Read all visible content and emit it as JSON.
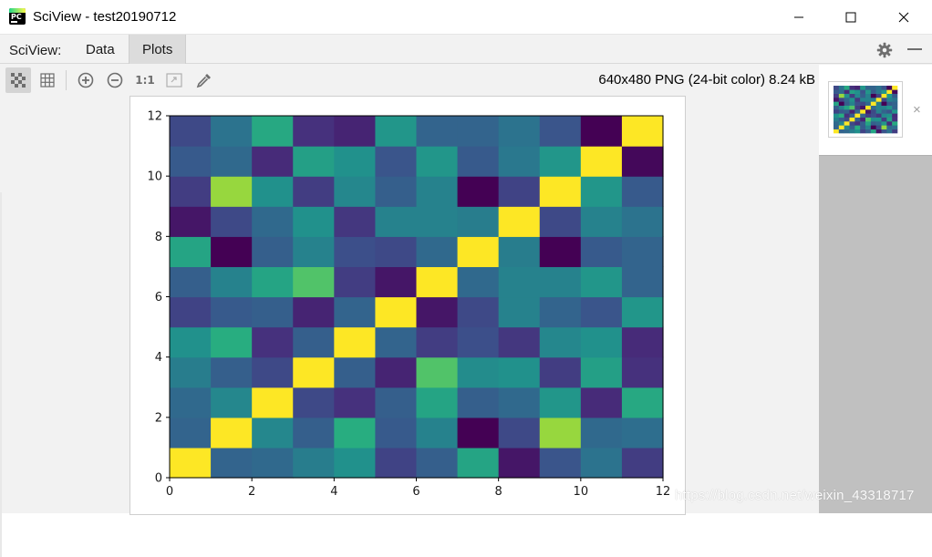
{
  "window": {
    "title": "SciView - test20190712",
    "logo_text": "PC"
  },
  "tabs": {
    "prefix": "SciView:",
    "items": [
      {
        "label": "Data"
      },
      {
        "label": "Plots",
        "active": true
      }
    ]
  },
  "toolbar": {
    "image_info": "640x480 PNG (24-bit color) 8.24 kB",
    "actual_size_label": "1:1",
    "icons": [
      "chessboard-icon",
      "grid-icon",
      "zoom-in-icon",
      "zoom-out-icon",
      "actual-size-icon",
      "fit-zoom-icon",
      "color-picker-icon"
    ]
  },
  "thumbnail": {
    "close_label": "×"
  },
  "watermark": "https://blog.csdn.net/weixin_43318717",
  "colors": {
    "viridis_stops": [
      "#440154",
      "#472d7b",
      "#3b528b",
      "#2c728e",
      "#21918c",
      "#28ae80",
      "#5ec962",
      "#addc30",
      "#fde725"
    ]
  },
  "chart_data": {
    "type": "heatmap",
    "title": "",
    "xlabel": "",
    "ylabel": "",
    "xlim": [
      0,
      12
    ],
    "ylim": [
      0,
      12
    ],
    "x_ticks": [
      "0",
      "2",
      "4",
      "6",
      "8",
      "10",
      "12"
    ],
    "y_ticks": [
      "0",
      "2",
      "4",
      "6",
      "8",
      "10",
      "12"
    ],
    "colormap": "viridis",
    "value_range": [
      0,
      1
    ],
    "rows_bottom_to_top": [
      [
        1.0,
        0.32,
        0.34,
        0.42,
        0.5,
        0.2,
        0.3,
        0.58,
        0.06,
        0.26,
        0.38,
        0.18
      ],
      [
        0.32,
        1.0,
        0.46,
        0.3,
        0.62,
        0.28,
        0.44,
        0.0,
        0.22,
        0.84,
        0.34,
        0.36
      ],
      [
        0.34,
        0.46,
        1.0,
        0.22,
        0.14,
        0.3,
        0.58,
        0.3,
        0.34,
        0.52,
        0.12,
        0.6
      ],
      [
        0.42,
        0.3,
        0.22,
        1.0,
        0.3,
        0.1,
        0.72,
        0.48,
        0.5,
        0.18,
        0.56,
        0.14
      ],
      [
        0.5,
        0.62,
        0.14,
        0.3,
        1.0,
        0.32,
        0.18,
        0.24,
        0.16,
        0.46,
        0.5,
        0.12
      ],
      [
        0.2,
        0.28,
        0.3,
        0.1,
        0.32,
        1.0,
        0.06,
        0.22,
        0.44,
        0.32,
        0.26,
        0.52
      ],
      [
        0.3,
        0.44,
        0.58,
        0.72,
        0.18,
        0.06,
        1.0,
        0.34,
        0.44,
        0.44,
        0.52,
        0.32
      ],
      [
        0.58,
        0.0,
        0.3,
        0.44,
        0.24,
        0.22,
        0.34,
        1.0,
        0.42,
        0.0,
        0.28,
        0.32
      ],
      [
        0.06,
        0.22,
        0.34,
        0.5,
        0.16,
        0.44,
        0.44,
        0.42,
        1.0,
        0.22,
        0.44,
        0.38
      ],
      [
        0.18,
        0.84,
        0.5,
        0.18,
        0.46,
        0.3,
        0.44,
        0.0,
        0.2,
        1.0,
        0.52,
        0.28
      ],
      [
        0.28,
        0.34,
        0.12,
        0.56,
        0.5,
        0.26,
        0.52,
        0.28,
        0.4,
        0.52,
        1.0,
        0.02
      ],
      [
        0.22,
        0.38,
        0.6,
        0.14,
        0.1,
        0.52,
        0.32,
        0.32,
        0.38,
        0.26,
        0.0,
        1.0
      ]
    ]
  }
}
